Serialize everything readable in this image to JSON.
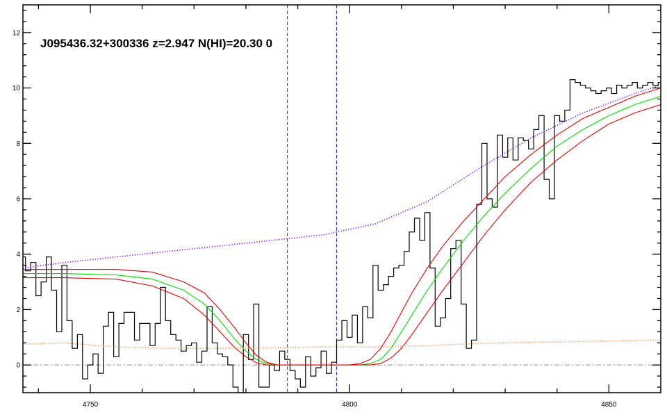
{
  "chart_data": {
    "type": "line",
    "title": "J095436.32+300336 z=2.947 N(HI)=20.30 0",
    "xlabel": "",
    "ylabel": "",
    "xlim": [
      4737,
      4860
    ],
    "ylim": [
      -1.0,
      13.0
    ],
    "grid": false,
    "x_ticks": [
      4750,
      4800,
      4850
    ],
    "y_ticks": [
      0,
      2,
      4,
      6,
      8,
      10,
      12
    ],
    "reference_lines": {
      "vertical": [
        4788.0,
        4797.5
      ],
      "horizontal": [
        0
      ]
    },
    "series": [
      {
        "style": "histogram",
        "color": "#000000",
        "x": [
          4737,
          4738,
          4739,
          4740,
          4741,
          4742,
          4743,
          4744,
          4745,
          4746,
          4747,
          4748,
          4749,
          4750,
          4751,
          4752,
          4753,
          4754,
          4755,
          4756,
          4757,
          4758,
          4759,
          4760,
          4761,
          4762,
          4763,
          4764,
          4765,
          4766,
          4767,
          4768,
          4769,
          4770,
          4771,
          4772,
          4773,
          4774,
          4775,
          4776,
          4777,
          4778,
          4779,
          4780,
          4781,
          4782,
          4783,
          4784,
          4785,
          4786,
          4787,
          4788,
          4789,
          4790,
          4791,
          4792,
          4793,
          4794,
          4795,
          4796,
          4797,
          4798,
          4799,
          4800,
          4801,
          4802,
          4803,
          4804,
          4805,
          4806,
          4807,
          4808,
          4809,
          4810,
          4811,
          4812,
          4813,
          4814,
          4815,
          4816,
          4817,
          4818,
          4819,
          4820,
          4821,
          4822,
          4823,
          4824,
          4825,
          4826,
          4827,
          4828,
          4829,
          4830,
          4831,
          4832,
          4833,
          4834,
          4835,
          4836,
          4837,
          4838,
          4839,
          4840,
          4841,
          4842,
          4843,
          4844,
          4845,
          4846,
          4847,
          4848,
          4849,
          4850,
          4851,
          4852,
          4853,
          4854,
          4855,
          4856,
          4857,
          4858,
          4859,
          4860
        ],
        "y": [
          3.9,
          3.4,
          3.7,
          2.5,
          3.0,
          3.9,
          2.7,
          1.2,
          3.6,
          1.6,
          0.6,
          1.1,
          -0.5,
          0.0,
          0.4,
          -0.3,
          1.4,
          1.9,
          0.3,
          1.5,
          1.9,
          1.9,
          0.9,
          1.5,
          1.5,
          0.7,
          1.5,
          2.8,
          1.6,
          1.1,
          0.9,
          0.5,
          0.7,
          0.8,
          0.1,
          0.5,
          2.1,
          0.8,
          0.4,
          0.3,
          0.0,
          -0.8,
          -1.0,
          1.1,
          0.2,
          2.2,
          -0.8,
          -0.8,
          0.0,
          -0.2,
          0.5,
          0.2,
          -0.2,
          -0.5,
          -0.8,
          0.3,
          -0.4,
          -0.1,
          0.5,
          -0.3,
          0.1,
          0.9,
          1.6,
          1.0,
          1.8,
          0.8,
          2.1,
          1.7,
          3.6,
          2.7,
          2.9,
          3.2,
          3.5,
          3.6,
          4.1,
          4.8,
          5.3,
          4.5,
          5.5,
          3.5,
          1.4,
          1.7,
          2.4,
          4.2,
          4.5,
          2.2,
          0.6,
          0.9,
          5.8,
          8.0,
          6.0,
          5.7,
          8.3,
          7.5,
          8.2,
          7.4,
          8.2,
          8.1,
          7.8,
          8.5,
          9.0,
          6.7,
          6.0,
          9.0,
          8.8,
          9.2,
          10.3,
          10.2,
          10.1,
          10.0,
          9.9,
          9.8,
          9.9,
          10.0,
          9.8,
          10.1,
          10.0,
          10.1,
          10.2,
          10.0,
          10.1,
          10.2,
          10.1,
          10.2
        ]
      },
      {
        "style": "line",
        "color": "#00dd00",
        "x": [
          4737,
          4745,
          4755,
          4762,
          4768,
          4772,
          4775,
          4778,
          4780,
          4782,
          4784,
          4786,
          4790,
          4795,
          4800,
          4802,
          4804,
          4806,
          4808,
          4810,
          4812,
          4815,
          4818,
          4822,
          4826,
          4830,
          4835,
          4840,
          4845,
          4850,
          4855,
          4860
        ],
        "y": [
          3.3,
          3.3,
          3.25,
          3.1,
          2.7,
          2.2,
          1.6,
          0.9,
          0.5,
          0.2,
          0.05,
          0.0,
          0.0,
          0.0,
          0.0,
          0.0,
          0.05,
          0.2,
          0.6,
          1.2,
          1.8,
          2.7,
          3.5,
          4.5,
          5.4,
          6.2,
          7.1,
          7.9,
          8.5,
          9.0,
          9.4,
          9.7
        ]
      },
      {
        "style": "line",
        "color": "#dd0000",
        "x": [
          4737,
          4745,
          4755,
          4762,
          4768,
          4772,
          4775,
          4778,
          4780,
          4782,
          4784,
          4786,
          4790,
          4795,
          4800,
          4802,
          4804,
          4806,
          4808,
          4810,
          4812,
          4815,
          4818,
          4822,
          4826,
          4830,
          4835,
          4840,
          4845,
          4850,
          4855,
          4860
        ],
        "y": [
          3.45,
          3.45,
          3.45,
          3.35,
          3.0,
          2.6,
          2.0,
          1.3,
          0.8,
          0.35,
          0.1,
          0.0,
          0.0,
          0.0,
          0.0,
          0.05,
          0.2,
          0.6,
          1.2,
          1.9,
          2.6,
          3.5,
          4.3,
          5.2,
          6.0,
          6.8,
          7.6,
          8.3,
          8.9,
          9.3,
          9.7,
          10.0
        ]
      },
      {
        "style": "line",
        "color": "#dd0000",
        "x": [
          4737,
          4745,
          4755,
          4762,
          4768,
          4772,
          4775,
          4778,
          4780,
          4782,
          4784,
          4786,
          4790,
          4795,
          4800,
          4802,
          4804,
          4806,
          4808,
          4810,
          4812,
          4815,
          4818,
          4822,
          4826,
          4830,
          4835,
          4840,
          4845,
          4850,
          4855,
          4860
        ],
        "y": [
          3.15,
          3.15,
          3.1,
          2.85,
          2.4,
          1.8,
          1.2,
          0.6,
          0.3,
          0.08,
          0.0,
          0.0,
          0.0,
          0.0,
          0.0,
          0.0,
          0.0,
          0.05,
          0.25,
          0.6,
          1.1,
          1.9,
          2.7,
          3.7,
          4.7,
          5.6,
          6.6,
          7.4,
          8.1,
          8.7,
          9.1,
          9.4
        ]
      },
      {
        "style": "dotted",
        "color": "#7a00ff",
        "x": [
          4737,
          4745,
          4755,
          4765,
          4775,
          4785,
          4795,
          4805,
          4815,
          4825,
          4835,
          4845,
          4855,
          4860
        ],
        "y": [
          3.5,
          3.7,
          3.9,
          4.1,
          4.3,
          4.5,
          4.7,
          5.1,
          5.9,
          7.1,
          8.2,
          9.1,
          9.8,
          10.1
        ]
      },
      {
        "style": "dotted",
        "color": "#ff8c3a",
        "x": [
          4737,
          4745,
          4755,
          4765,
          4775,
          4785,
          4795,
          4805,
          4815,
          4825,
          4835,
          4845,
          4855,
          4860
        ],
        "y": [
          0.75,
          0.8,
          0.65,
          0.6,
          0.6,
          0.62,
          0.65,
          0.65,
          0.7,
          0.78,
          0.82,
          0.85,
          0.88,
          0.9
        ]
      }
    ]
  }
}
